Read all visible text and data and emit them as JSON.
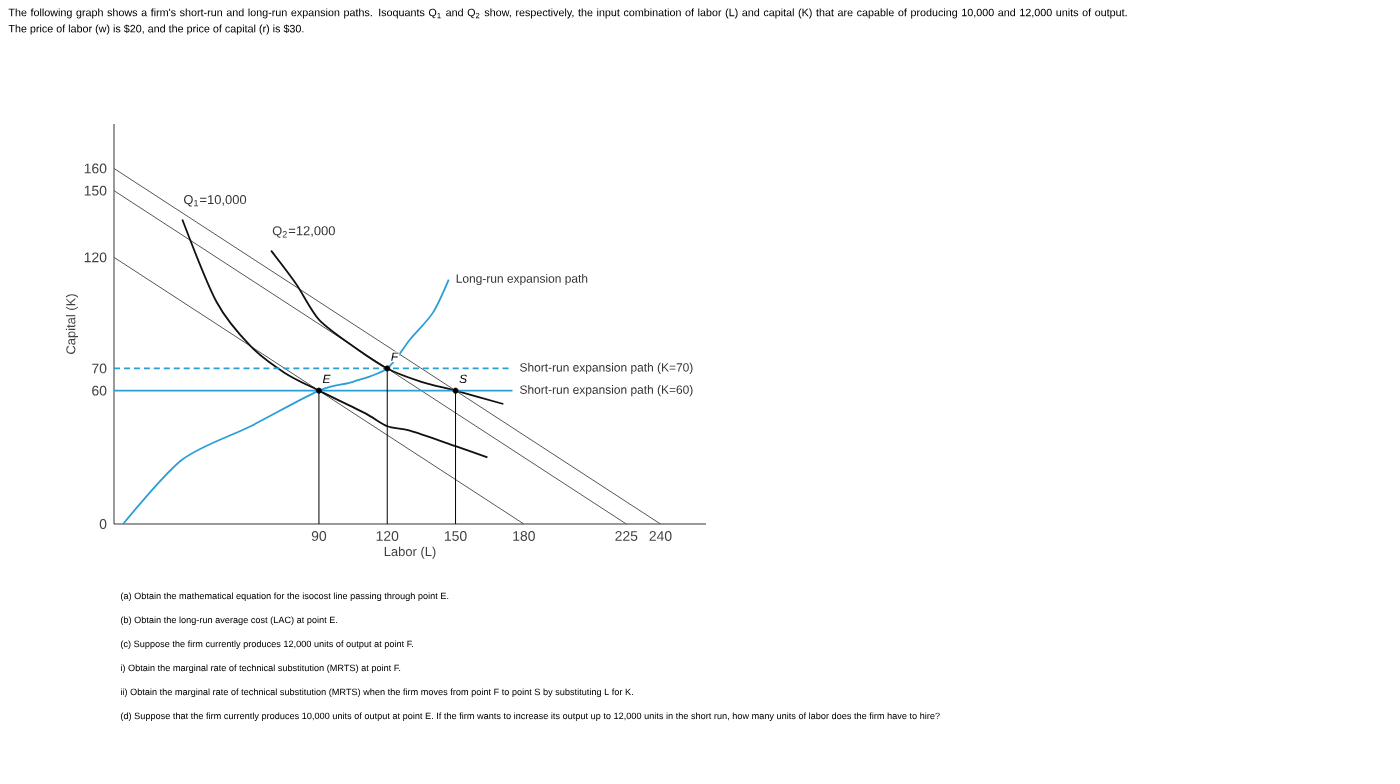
{
  "chart_data": {
    "type": "line",
    "title": "The following graph shows a firm's short-run and long-run expansion paths. Isoquants Q$_{1}$ and Q$_{2}$ show, respectively, the input combination of labor (L) and capital (K) that are capable of producing 10,000 and 12,000 units of output.",
    "subtitle": "The price of labor (w) is $20, and the price of capital (r) is $30.",
    "xlabel": "Labor (L)",
    "ylabel": "Capital (K)",
    "xlim": [
      0,
      260
    ],
    "ylim": [
      0,
      180
    ],
    "xticks": [
      90,
      120,
      150,
      180,
      225,
      240
    ],
    "yticks": [
      0,
      60,
      70,
      120,
      150,
      160
    ],
    "grid": false,
    "legend": false,
    "series": [
      {
        "color": "#555555",
        "x": [
          0,
          180
        ],
        "values": [
          120,
          0
        ]
      },
      {
        "color": "#555555",
        "x": [
          0,
          225
        ],
        "values": [
          150,
          0
        ]
      },
      {
        "color": "#555555",
        "x": [
          0,
          240
        ],
        "values": [
          160,
          0
        ]
      },
      {
        "name": "Q$_{1}$=10,000",
        "color": "#111111",
        "x": [
          30,
          45,
          60,
          75,
          90,
          110,
          120,
          130,
          150,
          164
        ],
        "values": [
          137,
          100,
          80,
          68,
          60,
          50,
          44,
          42,
          35,
          30
        ]
      },
      {
        "name": "Q$_{2}$=12,000",
        "color": "#111111",
        "x": [
          69,
          80,
          90,
          105,
          120,
          135,
          150,
          171
        ],
        "values": [
          123,
          108,
          92,
          80,
          70,
          64,
          60,
          54
        ]
      },
      {
        "name": "Long-run expansion path",
        "color": "#2a9fd6",
        "x": [
          4,
          30,
          60,
          90,
          105,
          120,
          130,
          140,
          147
        ],
        "values": [
          0,
          29,
          44,
          60,
          64,
          70,
          83,
          95,
          110
        ]
      },
      {
        "name": "Short-run expansion path (K=70)",
        "color": "#2a9fd6",
        "line_style": "dashed",
        "x": [
          0,
          175
        ],
        "values": [
          70,
          70
        ]
      },
      {
        "name": "Short-run expansion path (K=60)",
        "color": "#2a9fd6",
        "x": [
          0,
          175
        ],
        "values": [
          60,
          60
        ]
      },
      {
        "type": "scatter",
        "marker": "circle",
        "color": "#000000",
        "x": [
          90,
          120,
          150
        ],
        "values": [
          60,
          70,
          60
        ]
      }
    ],
    "annotations": [
      {
        "text": "E",
        "x": 90,
        "y": 60
      },
      {
        "text": "F",
        "x": 120,
        "y": 70
      },
      {
        "text": "S",
        "x": 150,
        "y": 60
      },
      "(a) Obtain the mathematical equation for the isocost line passing through point E.",
      "(b) Obtain the long-run average cost (LAC) at point E.",
      "(c) Suppose the firm currently produces 12,000 units of output at point F.",
      "i) Obtain the marginal rate of technical substitution (MRTS) at point F.",
      "ii) Obtain the marginal rate of technical substitution (MRTS) when the firm moves from point F to point S by substituting L for K.",
      "(d) Suppose that the firm currently produces 10,000 units of output at point E. If the firm wants to increase its output up to 12,000 units in the short run, how many units of labor does the firm have to hire?"
    ]
  }
}
